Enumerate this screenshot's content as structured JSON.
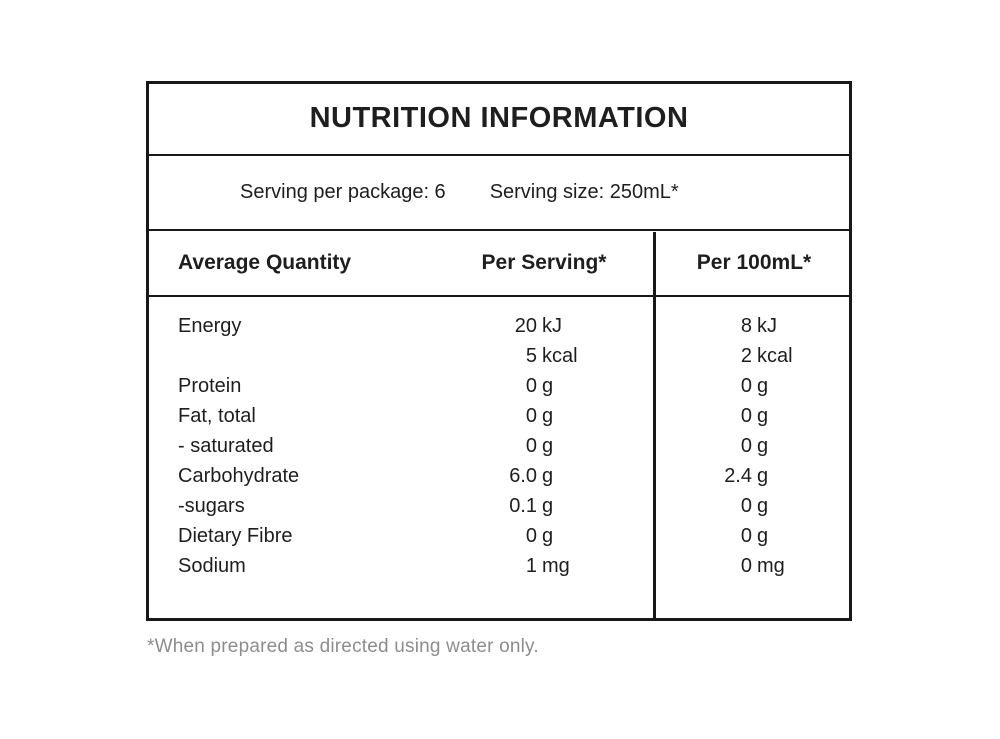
{
  "label": {
    "title": "NUTRITION INFORMATION",
    "serving_info": {
      "per_package": "Serving per package: 6",
      "size": "Serving size: 250mL*"
    },
    "columns": {
      "label": "Average Quantity",
      "per_serving": "Per Serving*",
      "per_100ml": "Per 100mL*"
    },
    "rows": [
      {
        "label": "Energy",
        "serving_num": "20",
        "serving_unit": "kJ",
        "per100_num": "8",
        "per100_unit": "kJ"
      },
      {
        "label": "",
        "serving_num": "5",
        "serving_unit": "kcal",
        "per100_num": "2",
        "per100_unit": "kcal"
      },
      {
        "label": "Protein",
        "serving_num": "0",
        "serving_unit": "g",
        "per100_num": "0",
        "per100_unit": "g"
      },
      {
        "label": "Fat, total",
        "serving_num": "0",
        "serving_unit": "g",
        "per100_num": "0",
        "per100_unit": "g"
      },
      {
        "label": "- saturated",
        "serving_num": "0",
        "serving_unit": "g",
        "per100_num": "0",
        "per100_unit": "g"
      },
      {
        "label": "Carbohydrate",
        "serving_num": "6.0",
        "serving_unit": "g",
        "per100_num": "2.4",
        "per100_unit": "g"
      },
      {
        "label": "-sugars",
        "serving_num": "0.1",
        "serving_unit": "g",
        "per100_num": "0",
        "per100_unit": "g"
      },
      {
        "label": "Dietary Fibre",
        "serving_num": "0",
        "serving_unit": "g",
        "per100_num": "0",
        "per100_unit": "g"
      },
      {
        "label": "Sodium",
        "serving_num": "1",
        "serving_unit": "mg",
        "per100_num": "0",
        "per100_unit": "mg"
      }
    ],
    "footnote": "*When prepared as directed using water only.",
    "colors": {
      "border": "#181818",
      "text": "#1e1e1e",
      "footnote_text": "#8d8d8d",
      "background": "#ffffff"
    }
  }
}
